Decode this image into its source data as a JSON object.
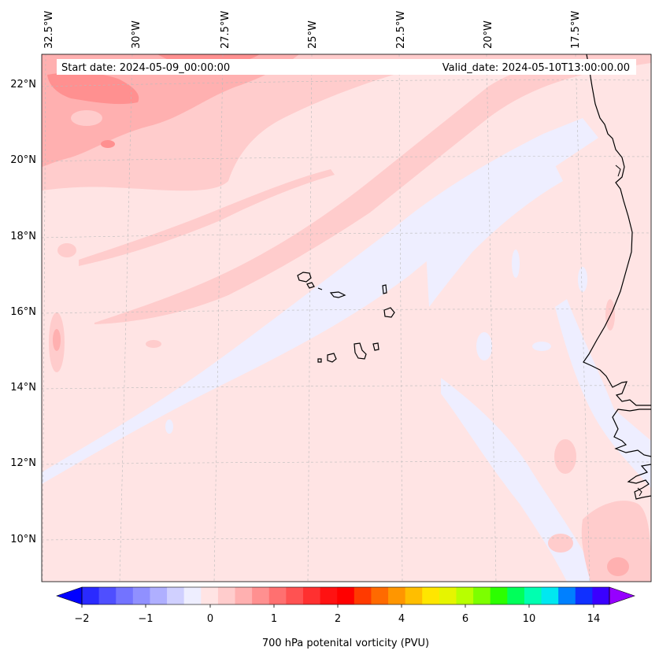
{
  "header": {
    "start_date": "Start date: 2024-05-09_00:00:00",
    "valid_date": "Valid_date: 2024-05-10T13:00:00.00"
  },
  "lon_labels": [
    "32.5°W",
    "30°W",
    "27.5°W",
    "25°W",
    "22.5°W",
    "20°W",
    "17.5°W"
  ],
  "lat_labels": [
    "22°N",
    "20°N",
    "18°N",
    "16°N",
    "14°N",
    "12°N",
    "10°N"
  ],
  "colorbar": {
    "title": "700 hPa potenital vorticity (PVU)",
    "tick_labels": [
      "−2",
      "−1",
      "0",
      "1",
      "2",
      "4",
      "6",
      "10",
      "14"
    ],
    "colors": [
      "#0000ff",
      "#2a2aff",
      "#4f4fff",
      "#7373ff",
      "#9090ff",
      "#afafff",
      "#d0d0ff",
      "#eeeeff",
      "#ffe4e4",
      "#ffcccc",
      "#ffb0b0",
      "#ff9090",
      "#ff7070",
      "#ff5252",
      "#ff3030",
      "#ff1212",
      "#ff0000",
      "#ff3a00",
      "#ff6a00",
      "#ff9600",
      "#ffbe00",
      "#ffe600",
      "#e6f500",
      "#b8ff00",
      "#7cff00",
      "#2cff00",
      "#00ff5a",
      "#00ffb0",
      "#00e8f0",
      "#0080ff",
      "#1030ff",
      "#3a00ff",
      "#9600ff"
    ]
  },
  "colors": {
    "background_field": "#ffe4e4",
    "light_positive": "#ffcccc",
    "mid_positive": "#ffb0b0",
    "strong_positive": "#ff9090",
    "near_zero_negative": "#eeeeff",
    "coastline": "#000000"
  }
}
